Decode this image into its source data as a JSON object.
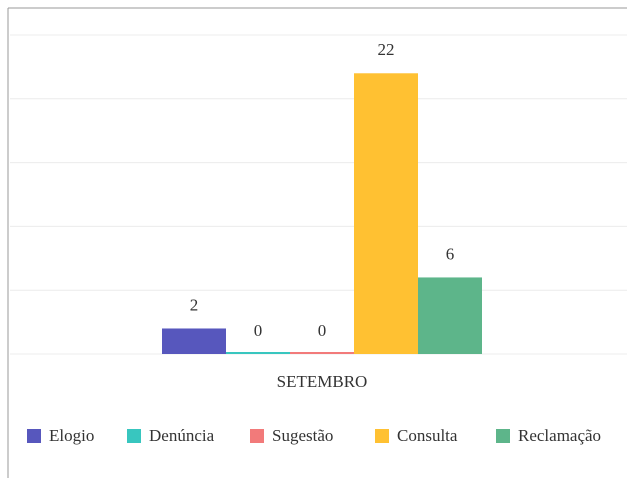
{
  "chart_data": {
    "type": "bar",
    "categories": [
      "SETEMBRO"
    ],
    "series": [
      {
        "name": "Elogio",
        "color": "#5757bd",
        "values": [
          2
        ]
      },
      {
        "name": "Denúncia",
        "color": "#38c6bf",
        "values": [
          0
        ]
      },
      {
        "name": "Sugestão",
        "color": "#f27a7a",
        "values": [
          0
        ]
      },
      {
        "name": "Consulta",
        "color": "#ffc132",
        "values": [
          22
        ]
      },
      {
        "name": "Reclamação",
        "color": "#5db58a",
        "values": [
          6
        ]
      }
    ],
    "ylim": [
      0,
      25
    ],
    "yticks": [
      0,
      5,
      10,
      15,
      20,
      25
    ],
    "grid": true,
    "legend": "bottom"
  }
}
